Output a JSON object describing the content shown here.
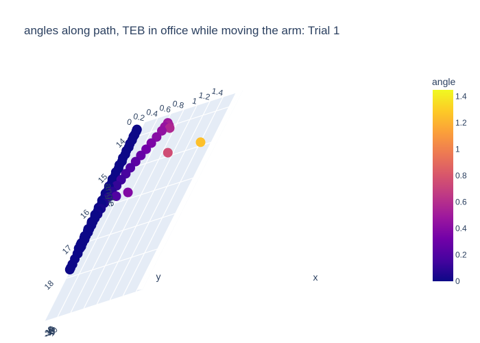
{
  "chart_data": {
    "type": "scatter3d",
    "title": "angles along path, TEB in office while moving the arm: Trial 1",
    "xlabel": "x",
    "ylabel": "y",
    "zlabel": "angle",
    "x_ticks": [
      "-20",
      "-15",
      "-10",
      "-5",
      "0",
      "5",
      "10"
    ],
    "y_ticks": [
      "14",
      "15",
      "16",
      "17",
      "18"
    ],
    "z_ticks": [
      "0",
      "0.2",
      "0.4",
      "0.6",
      "0.8",
      "1",
      "1.2",
      "1.4"
    ],
    "xlim": [
      -22,
      13
    ],
    "ylim": [
      13.6,
      19.2
    ],
    "zlim": [
      0,
      1.5
    ],
    "colorbar": {
      "title": "angle",
      "range": [
        0,
        1.45
      ],
      "ticks": [
        "0",
        "0.2",
        "0.4",
        "0.6",
        "0.8",
        "1",
        "1.2",
        "1.4"
      ],
      "colorscale": [
        "#0d0887",
        "#46039f",
        "#7201a8",
        "#9c179e",
        "#bd3786",
        "#d8576b",
        "#ed7953",
        "#fb9f3a",
        "#fdca26",
        "#f0f921"
      ]
    },
    "points": [
      {
        "x": -8,
        "y": 14.1,
        "z": 0.57
      },
      {
        "x": -7,
        "y": 14.0,
        "z": 0.53
      },
      {
        "x": -6,
        "y": 13.95,
        "z": 0.5
      },
      {
        "x": -5,
        "y": 13.9,
        "z": 0.48
      },
      {
        "x": -4.5,
        "y": 14.0,
        "z": 0.46
      },
      {
        "x": -4,
        "y": 14.1,
        "z": 0.44
      },
      {
        "x": -3.6,
        "y": 14.25,
        "z": 0.4
      },
      {
        "x": -3.3,
        "y": 14.4,
        "z": 0.36
      },
      {
        "x": -3.0,
        "y": 14.55,
        "z": 0.32
      },
      {
        "x": -2.7,
        "y": 14.7,
        "z": 0.28
      },
      {
        "x": -2.4,
        "y": 14.85,
        "z": 0.24
      },
      {
        "x": -2.0,
        "y": 15.0,
        "z": 0.2
      },
      {
        "x": -1.7,
        "y": 15.15,
        "z": 0.17
      },
      {
        "x": -1.4,
        "y": 15.3,
        "z": 0.14
      },
      {
        "x": -1.0,
        "y": 15.45,
        "z": 0.11
      },
      {
        "x": -0.6,
        "y": 15.6,
        "z": 0.08
      },
      {
        "x": -0.2,
        "y": 15.75,
        "z": 0.06
      },
      {
        "x": 0.2,
        "y": 15.9,
        "z": 0.04
      },
      {
        "x": 0.6,
        "y": 16.05,
        "z": 0.03
      },
      {
        "x": 1.0,
        "y": 16.2,
        "z": 0.02
      },
      {
        "x": 1.6,
        "y": 16.4,
        "z": 0.0
      },
      {
        "x": 2.4,
        "y": 16.6,
        "z": 0.0
      },
      {
        "x": 3.2,
        "y": 16.8,
        "z": 0.0
      },
      {
        "x": 4.0,
        "y": 17.0,
        "z": 0.0
      },
      {
        "x": 4.8,
        "y": 17.15,
        "z": 0.0
      },
      {
        "x": 5.6,
        "y": 17.3,
        "z": 0.0
      },
      {
        "x": 6.4,
        "y": 17.45,
        "z": 0.0
      },
      {
        "x": 7.2,
        "y": 17.6,
        "z": 0.0
      },
      {
        "x": 8.0,
        "y": 17.7,
        "z": 0.0
      },
      {
        "x": 8.6,
        "y": 17.75,
        "z": 0.0
      },
      {
        "x": 9.0,
        "y": 17.6,
        "z": 0.0
      },
      {
        "x": 8.6,
        "y": 17.3,
        "z": 0.0
      },
      {
        "x": 7.8,
        "y": 17.1,
        "z": 0.0
      },
      {
        "x": 6.8,
        "y": 16.9,
        "z": 0.0
      },
      {
        "x": 5.6,
        "y": 16.7,
        "z": 0.0
      },
      {
        "x": 4.4,
        "y": 16.5,
        "z": 0.0
      },
      {
        "x": 3.2,
        "y": 16.3,
        "z": 0.0
      },
      {
        "x": 2.0,
        "y": 16.1,
        "z": 0.0
      },
      {
        "x": 0.8,
        "y": 15.9,
        "z": 0.0
      },
      {
        "x": -0.4,
        "y": 15.7,
        "z": 0.0
      },
      {
        "x": -1.6,
        "y": 15.5,
        "z": 0.0
      },
      {
        "x": -2.8,
        "y": 15.3,
        "z": 0.0
      },
      {
        "x": -4.0,
        "y": 15.1,
        "z": 0.0
      },
      {
        "x": -5.2,
        "y": 14.9,
        "z": 0.0
      },
      {
        "x": -6.4,
        "y": 14.7,
        "z": 0.0
      },
      {
        "x": -7.6,
        "y": 14.5,
        "z": 0.0
      },
      {
        "x": -8.8,
        "y": 14.3,
        "z": 0.0
      },
      {
        "x": -10.0,
        "y": 14.1,
        "z": 0.0
      },
      {
        "x": -11.2,
        "y": 13.95,
        "z": 0.0
      },
      {
        "x": -12.4,
        "y": 13.85,
        "z": 0.0
      },
      {
        "x": -13.4,
        "y": 13.8,
        "z": 0.0
      },
      {
        "x": -14.0,
        "y": 13.8,
        "z": 0.0
      },
      {
        "x": -13.6,
        "y": 14.0,
        "z": 0.0
      },
      {
        "x": -13.2,
        "y": 14.2,
        "z": 0.0
      },
      {
        "x": -13.0,
        "y": 14.4,
        "z": 0.0
      },
      {
        "x": -12.6,
        "y": 14.6,
        "z": 0.0
      },
      {
        "x": -12.2,
        "y": 14.8,
        "z": 0.0
      },
      {
        "x": -11.6,
        "y": 15.0,
        "z": 0.0
      },
      {
        "x": -11.0,
        "y": 15.2,
        "z": 0.0
      },
      {
        "x": -10.2,
        "y": 15.4,
        "z": 0.0
      },
      {
        "x": -9.4,
        "y": 15.6,
        "z": 0.0
      },
      {
        "x": -8.6,
        "y": 15.8,
        "z": 0.0
      },
      {
        "x": -7.8,
        "y": 16.0,
        "z": 0.0
      },
      {
        "x": -7.0,
        "y": 16.2,
        "z": 0.0
      },
      {
        "x": -6.2,
        "y": 16.4,
        "z": 0.0
      },
      {
        "x": -5.4,
        "y": 16.6,
        "z": 0.0
      },
      {
        "x": -4.6,
        "y": 16.8,
        "z": 0.0
      },
      {
        "x": -4.0,
        "y": 17.0,
        "z": 0.0
      },
      {
        "x": -3.6,
        "y": 17.15,
        "z": 0.0
      },
      {
        "x": -3.3,
        "y": 17.05,
        "z": 0.0
      },
      {
        "x": -2.8,
        "y": 16.85,
        "z": 0.0
      },
      {
        "x": -2.4,
        "y": 16.65,
        "z": 0.0
      },
      {
        "x": -2.0,
        "y": 16.45,
        "z": 0.0
      },
      {
        "x": -1.4,
        "y": 16.25,
        "z": 0.0
      },
      {
        "x": -0.9,
        "y": 16.1,
        "z": 0.0
      },
      {
        "x": -1.0,
        "y": 15.8,
        "z": 0.2
      },
      {
        "x": -1.2,
        "y": 15.8,
        "z": 0.38
      },
      {
        "x": -3.5,
        "y": 14.9,
        "z": 0.75
      },
      {
        "x": -3.5,
        "y": 14.9,
        "z": 1.25
      }
    ]
  }
}
